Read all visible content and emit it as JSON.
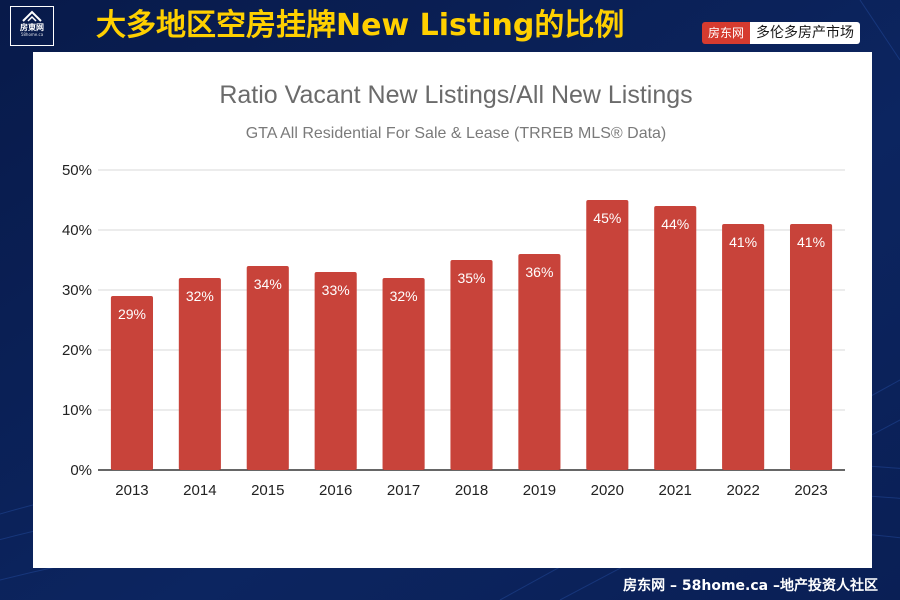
{
  "header": {
    "headline": "大多地区空房挂牌New Listing的比例",
    "logo_text": "房東网",
    "logo_sub": "58home.ca",
    "tag_brand": "房东网",
    "tag_text": "多伦多房产市场"
  },
  "footer": {
    "text": "房东网 – 58home.ca –地产投资人社区"
  },
  "colors": {
    "bar": "#c8433a",
    "background": "#0a1e52",
    "headline": "#ffd000"
  },
  "chart_data": {
    "type": "bar",
    "title": "Ratio Vacant New Listings/All New Listings",
    "subtitle": "GTA All Residential For Sale & Lease (TRREB MLS® Data)",
    "categories": [
      "2013",
      "2014",
      "2015",
      "2016",
      "2017",
      "2018",
      "2019",
      "2020",
      "2021",
      "2022",
      "2023"
    ],
    "values": [
      29,
      32,
      34,
      33,
      32,
      35,
      36,
      45,
      44,
      41,
      41
    ],
    "value_labels": [
      "29%",
      "32%",
      "34%",
      "33%",
      "32%",
      "35%",
      "36%",
      "45%",
      "44%",
      "41%",
      "41%"
    ],
    "y_ticks": [
      "0%",
      "10%",
      "20%",
      "30%",
      "40%",
      "50%"
    ],
    "ylim": [
      0,
      50
    ],
    "xlabel": "",
    "ylabel": "",
    "grid": true,
    "legend": "none"
  }
}
